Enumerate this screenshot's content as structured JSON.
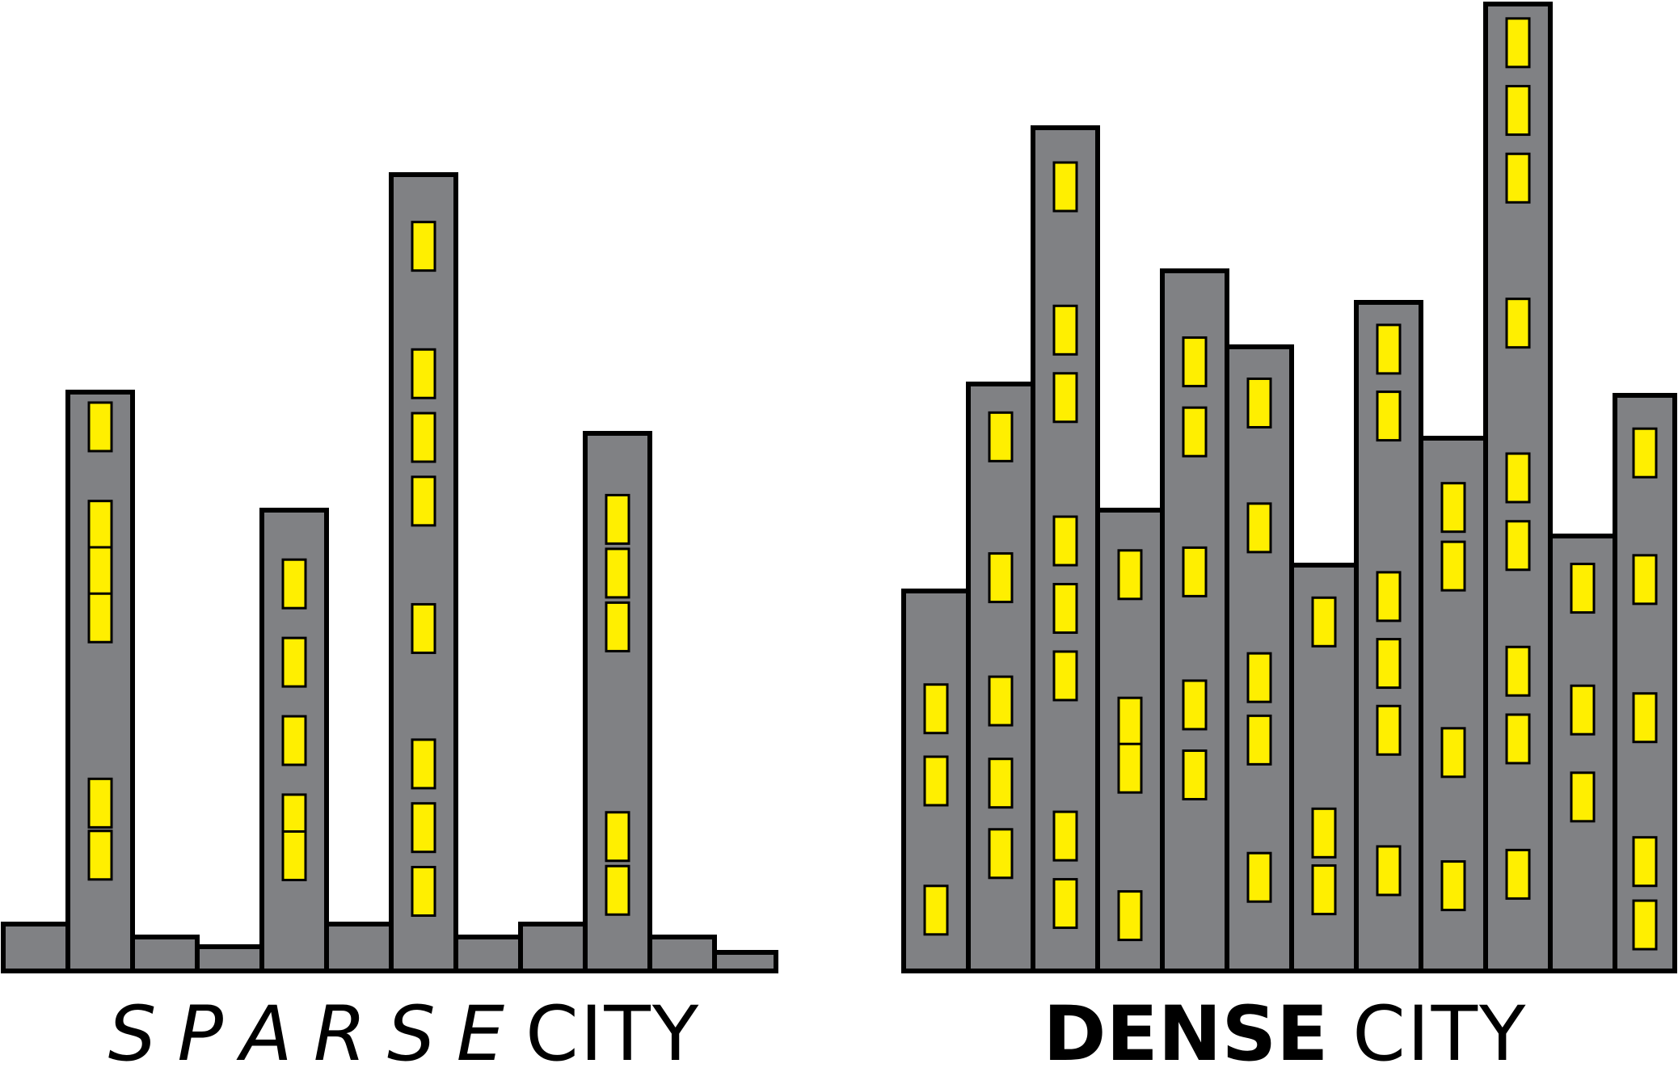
{
  "panels": [
    {
      "id": "sparse",
      "caption": {
        "emphasis": "SPARSE",
        "word": "CITY"
      },
      "buildings": [
        {
          "windows": []
        },
        {
          "windows": [
            0.94,
            0.77,
            0.69,
            0.61,
            0.29,
            0.2
          ]
        },
        {
          "windows": []
        },
        {
          "windows": []
        },
        {
          "windows": [
            0.84,
            0.67,
            0.5,
            0.33,
            0.25
          ]
        },
        {
          "windows": []
        },
        {
          "windows": [
            0.91,
            0.75,
            0.67,
            0.59,
            0.43,
            0.26,
            0.18,
            0.1
          ]
        },
        {
          "windows": []
        },
        {
          "windows": []
        },
        {
          "windows": [
            0.84,
            0.74,
            0.64,
            0.25,
            0.15
          ]
        },
        {
          "windows": []
        },
        {
          "windows": []
        }
      ]
    },
    {
      "id": "dense",
      "caption": {
        "emphasis": "DENSE",
        "word": "CITY"
      },
      "buildings": [
        {
          "windows": [
            0.69,
            0.5,
            0.16
          ]
        },
        {
          "windows": [
            0.91,
            0.67,
            0.46,
            0.32,
            0.2
          ]
        },
        {
          "windows": [
            0.93,
            0.76,
            0.68,
            0.51,
            0.43,
            0.35,
            0.16,
            0.08
          ]
        },
        {
          "windows": [
            0.86,
            0.54,
            0.44,
            0.12
          ]
        },
        {
          "windows": [
            0.87,
            0.77,
            0.57,
            0.38,
            0.28
          ]
        },
        {
          "windows": [
            0.91,
            0.71,
            0.47,
            0.37,
            0.15
          ]
        },
        {
          "windows": [
            0.86,
            0.34,
            0.2
          ]
        },
        {
          "windows": [
            0.93,
            0.83,
            0.56,
            0.46,
            0.36,
            0.15
          ]
        },
        {
          "windows": [
            0.87,
            0.76,
            0.41,
            0.16
          ]
        },
        {
          "windows": [
            0.96,
            0.89,
            0.82,
            0.67,
            0.51,
            0.44,
            0.31,
            0.24,
            0.1
          ]
        },
        {
          "windows": [
            0.88,
            0.6,
            0.4
          ]
        },
        {
          "windows": [
            0.9,
            0.68,
            0.44,
            0.19,
            0.08
          ]
        }
      ]
    }
  ],
  "colors": {
    "building": "#808184",
    "window": "#ffef00",
    "outline": "#000000",
    "text": "#000000"
  }
}
